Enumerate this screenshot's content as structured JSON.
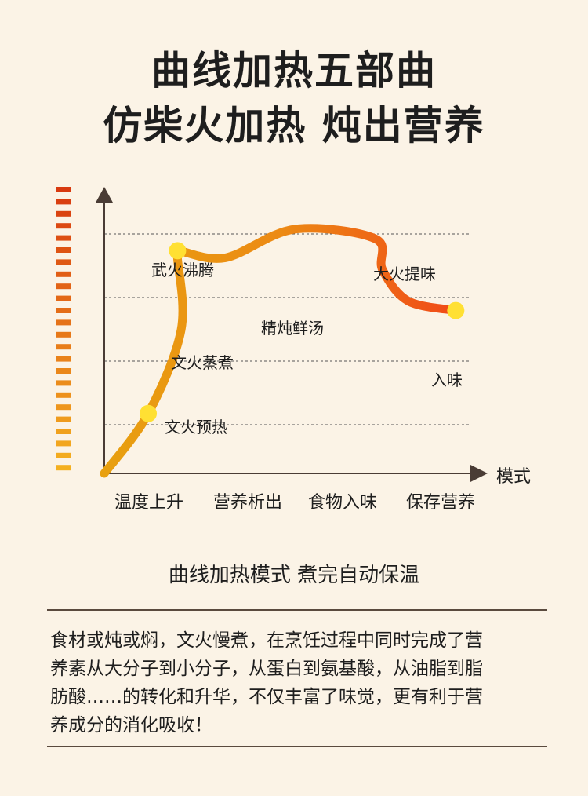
{
  "header": {
    "title_line1": "曲线加热五部曲",
    "title_line2": "仿柴火加热  炖出营养"
  },
  "chart_data": {
    "type": "line",
    "x_axis_label": "模式",
    "phases": [
      "温度上升",
      "营养析出",
      "食物入味",
      "保存营养"
    ],
    "stage_labels": [
      "文火预热",
      "文火蒸煮",
      "武火沸腾",
      "精炖鲜汤",
      "大火提味",
      "入味"
    ],
    "temperature_level": [
      {
        "x": 0.0,
        "y": 0.0
      },
      {
        "x": 0.12,
        "y": 0.25
      },
      {
        "x": 0.21,
        "y": 0.6
      },
      {
        "x": 0.2,
        "y": 0.9
      },
      {
        "x": 0.2,
        "y": 0.93
      },
      {
        "x": 0.33,
        "y": 0.9
      },
      {
        "x": 0.52,
        "y": 1.02
      },
      {
        "x": 0.74,
        "y": 0.98
      },
      {
        "x": 0.76,
        "y": 0.85
      },
      {
        "x": 0.83,
        "y": 0.72
      },
      {
        "x": 0.96,
        "y": 0.68
      }
    ],
    "gridlines": 4,
    "grid": true,
    "colors": {
      "curve_start": "#e8a010",
      "curve_end": "#f04a18",
      "marker": "#ffe033",
      "axis": "#4a3c35"
    }
  },
  "footer": {
    "subtitle": "曲线加热模式 煮完自动保温",
    "description_lines": [
      "食材或炖或焖，文火慢煮，在烹饪过程中同时完成了营",
      "养素从大分子到小分子，从蛋白到氨基酸，从油脂到脂",
      "肪酸……的转化和升华，不仅丰富了味觉，更有利于营",
      "养成分的消化吸收！"
    ]
  }
}
